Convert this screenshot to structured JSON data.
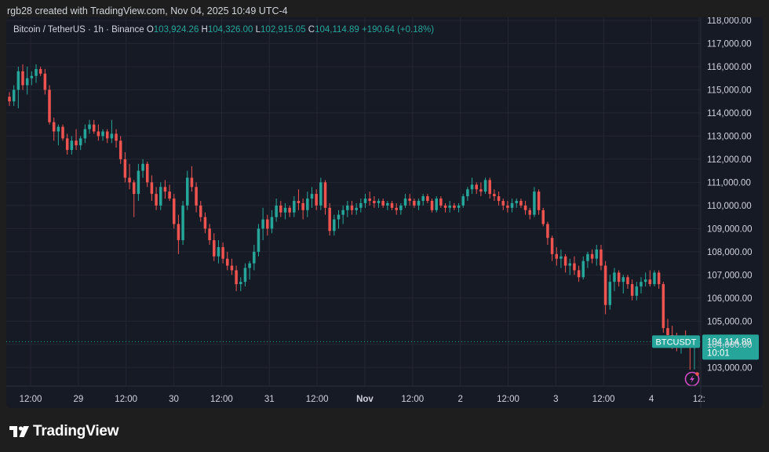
{
  "credit": "rgb28 created with TradingView.com, Nov 04, 2025 10:49 UTC-4",
  "legend": {
    "symbol": "Bitcoin / TetherUS · 1h · Binance",
    "o_label": "O",
    "o_value": "103,924.26",
    "h_label": "H",
    "h_value": "104,326.00",
    "l_label": "L",
    "l_value": "102,915.05",
    "c_label": "C",
    "c_value": "104,114.89",
    "change": "+190.64 (+0.18%)"
  },
  "price_tag": {
    "symbol": "BTCUSDT",
    "price": "104,114.89",
    "countdown": "10:01",
    "value": 104114.89
  },
  "brand": "TradingView",
  "colors": {
    "up": "#26a69a",
    "down": "#ef5350",
    "grid": "#242733",
    "text": "#d1d4dc",
    "alert": "#d34bc7"
  },
  "icons": {
    "alert": "lightning-alert-icon",
    "logo": "tradingview-logo-icon"
  },
  "chart_data": {
    "type": "candlestick",
    "ylim": [
      102500,
      118000
    ],
    "y_ticks": [
      103000,
      104000,
      105000,
      106000,
      107000,
      108000,
      109000,
      110000,
      111000,
      112000,
      113000,
      114000,
      115000,
      116000,
      117000,
      118000
    ],
    "y_tick_labels": [
      "103,000.00",
      "104,000.00",
      "105,000.00",
      "106,000.00",
      "107,000.00",
      "108,000.00",
      "109,000.00",
      "110,000.00",
      "111,000.00",
      "112,000.00",
      "113,000.00",
      "114,000.00",
      "115,000.00",
      "116,000.00",
      "117,000.00",
      "118,000.00"
    ],
    "x_ticks": [
      {
        "label": "12:00",
        "bold": false
      },
      {
        "label": "29",
        "bold": false
      },
      {
        "label": "12:00",
        "bold": false
      },
      {
        "label": "30",
        "bold": false
      },
      {
        "label": "12:00",
        "bold": false
      },
      {
        "label": "31",
        "bold": false
      },
      {
        "label": "12:00",
        "bold": false
      },
      {
        "label": "Nov",
        "bold": true
      },
      {
        "label": "12:00",
        "bold": false
      },
      {
        "label": "2",
        "bold": false
      },
      {
        "label": "12:00",
        "bold": false
      },
      {
        "label": "3",
        "bold": false
      },
      {
        "label": "12:00",
        "bold": false
      },
      {
        "label": "4",
        "bold": false
      },
      {
        "label": "12:",
        "bold": false
      }
    ],
    "candles": [
      [
        114700,
        114900,
        114300,
        114500
      ],
      [
        114500,
        115200,
        114300,
        115000
      ],
      [
        115000,
        116000,
        114200,
        115800
      ],
      [
        115800,
        116100,
        115000,
        115200
      ],
      [
        115200,
        116000,
        114800,
        115500
      ],
      [
        115500,
        115800,
        115200,
        115600
      ],
      [
        115600,
        116100,
        115300,
        115900
      ],
      [
        115900,
        116000,
        115600,
        115700
      ],
      [
        115700,
        115900,
        114800,
        115000
      ],
      [
        115000,
        115200,
        113500,
        113600
      ],
      [
        113600,
        113800,
        112800,
        113200
      ],
      [
        113200,
        113500,
        112600,
        113400
      ],
      [
        113400,
        113500,
        112800,
        112900
      ],
      [
        112900,
        113100,
        112200,
        112400
      ],
      [
        112400,
        113000,
        112200,
        112800
      ],
      [
        112800,
        113300,
        112400,
        112600
      ],
      [
        112600,
        113000,
        112400,
        112900
      ],
      [
        112900,
        113500,
        112700,
        113300
      ],
      [
        113300,
        113700,
        113100,
        113500
      ],
      [
        113500,
        113700,
        113100,
        113200
      ],
      [
        113200,
        113500,
        112800,
        113000
      ],
      [
        113000,
        113300,
        112800,
        113200
      ],
      [
        113200,
        113300,
        112700,
        112900
      ],
      [
        112900,
        113700,
        112700,
        113100
      ],
      [
        113100,
        113300,
        112500,
        112800
      ],
      [
        112800,
        113000,
        111800,
        112000
      ],
      [
        112000,
        112300,
        111000,
        111200
      ],
      [
        111200,
        111800,
        110700,
        111000
      ],
      [
        111000,
        111100,
        109500,
        110500
      ],
      [
        110500,
        111800,
        110200,
        111500
      ],
      [
        111500,
        112000,
        111200,
        111800
      ],
      [
        111800,
        111900,
        110800,
        111000
      ],
      [
        111000,
        111300,
        110200,
        110500
      ],
      [
        110500,
        110800,
        109800,
        110000
      ],
      [
        110000,
        111000,
        109800,
        110800
      ],
      [
        110800,
        111100,
        110300,
        110600
      ],
      [
        110600,
        110900,
        110200,
        110300
      ],
      [
        110300,
        110500,
        109000,
        109200
      ],
      [
        109200,
        109600,
        107900,
        108500
      ],
      [
        108500,
        110200,
        108300,
        110000
      ],
      [
        110000,
        111500,
        109800,
        111200
      ],
      [
        111200,
        111700,
        110600,
        110800
      ],
      [
        110800,
        111000,
        109700,
        110000
      ],
      [
        110000,
        110200,
        109300,
        109500
      ],
      [
        109500,
        109700,
        108800,
        109000
      ],
      [
        109000,
        109200,
        108300,
        108500
      ],
      [
        108500,
        108800,
        107600,
        107800
      ],
      [
        107800,
        108500,
        107500,
        108200
      ],
      [
        108200,
        108400,
        107500,
        107700
      ],
      [
        107700,
        108000,
        107200,
        107400
      ],
      [
        107400,
        107700,
        107000,
        107200
      ],
      [
        107200,
        107400,
        106300,
        106600
      ],
      [
        106600,
        106900,
        106300,
        106700
      ],
      [
        106700,
        107500,
        106500,
        107300
      ],
      [
        107300,
        107600,
        106800,
        107500
      ],
      [
        107500,
        108300,
        107200,
        108000
      ],
      [
        108000,
        109200,
        107800,
        109000
      ],
      [
        109000,
        109900,
        108500,
        109400
      ],
      [
        109400,
        109600,
        108700,
        109000
      ],
      [
        109000,
        109800,
        108800,
        109500
      ],
      [
        109500,
        110300,
        109300,
        110000
      ],
      [
        110000,
        110200,
        109500,
        109700
      ],
      [
        109700,
        110100,
        109400,
        109900
      ],
      [
        109900,
        110000,
        109500,
        109700
      ],
      [
        109700,
        110400,
        109500,
        110200
      ],
      [
        110200,
        110700,
        109800,
        110100
      ],
      [
        110100,
        110300,
        109400,
        109800
      ],
      [
        109800,
        110600,
        109500,
        110300
      ],
      [
        110300,
        110800,
        109900,
        110500
      ],
      [
        110500,
        110700,
        109800,
        110000
      ],
      [
        110000,
        111200,
        109800,
        111000
      ],
      [
        111000,
        111100,
        109600,
        109900
      ],
      [
        109900,
        110100,
        108700,
        108900
      ],
      [
        108900,
        109600,
        108700,
        109400
      ],
      [
        109400,
        109800,
        109000,
        109600
      ],
      [
        109600,
        110000,
        109200,
        109800
      ],
      [
        109800,
        110200,
        109500,
        110000
      ],
      [
        110000,
        110200,
        109600,
        109800
      ],
      [
        109800,
        110100,
        109600,
        109900
      ],
      [
        109900,
        110300,
        109700,
        110100
      ],
      [
        110100,
        110500,
        109900,
        110300
      ],
      [
        110300,
        110600,
        110000,
        110200
      ],
      [
        110200,
        110400,
        109900,
        110100
      ],
      [
        110100,
        110300,
        109900,
        110200
      ],
      [
        110200,
        110300,
        109900,
        110000
      ],
      [
        110000,
        110200,
        109800,
        110100
      ],
      [
        110100,
        110200,
        109800,
        109900
      ],
      [
        109900,
        110100,
        109600,
        109800
      ],
      [
        109800,
        110100,
        109600,
        110000
      ],
      [
        110000,
        110500,
        109900,
        110300
      ],
      [
        110300,
        110500,
        110000,
        110200
      ],
      [
        110200,
        110300,
        109900,
        110000
      ],
      [
        110000,
        110300,
        109800,
        110200
      ],
      [
        110200,
        110500,
        110000,
        110400
      ],
      [
        110400,
        110500,
        110100,
        110200
      ],
      [
        110200,
        110300,
        109700,
        109800
      ],
      [
        109800,
        110400,
        109700,
        110300
      ],
      [
        110300,
        110400,
        109900,
        110000
      ],
      [
        110000,
        110100,
        109700,
        109900
      ],
      [
        109900,
        110200,
        109700,
        110000
      ],
      [
        110000,
        110100,
        109800,
        109900
      ],
      [
        109900,
        110100,
        109700,
        110000
      ],
      [
        110000,
        110500,
        109900,
        110400
      ],
      [
        110400,
        110800,
        110200,
        110700
      ],
      [
        110700,
        111200,
        110500,
        110900
      ],
      [
        110900,
        111000,
        110500,
        110700
      ],
      [
        110700,
        111000,
        110400,
        110600
      ],
      [
        110600,
        111200,
        110500,
        111100
      ],
      [
        111100,
        111200,
        110300,
        110500
      ],
      [
        110500,
        110700,
        110200,
        110400
      ],
      [
        110400,
        110600,
        110000,
        110200
      ],
      [
        110200,
        110300,
        109800,
        110000
      ],
      [
        110000,
        110200,
        109700,
        109900
      ],
      [
        109900,
        110300,
        109700,
        110100
      ],
      [
        110100,
        110300,
        109900,
        110200
      ],
      [
        110200,
        110300,
        109900,
        110000
      ],
      [
        110000,
        110200,
        109600,
        109800
      ],
      [
        109800,
        109900,
        109400,
        109600
      ],
      [
        109600,
        110800,
        109500,
        110600
      ],
      [
        110600,
        110700,
        109600,
        109800
      ],
      [
        109800,
        109900,
        109100,
        109200
      ],
      [
        109200,
        109300,
        108300,
        108600
      ],
      [
        108600,
        108700,
        107600,
        107900
      ],
      [
        107900,
        108200,
        107400,
        107700
      ],
      [
        107700,
        108100,
        107300,
        107800
      ],
      [
        107800,
        107900,
        107100,
        107400
      ],
      [
        107400,
        107700,
        107000,
        107500
      ],
      [
        107500,
        107800,
        107000,
        107200
      ],
      [
        107200,
        107400,
        106700,
        106900
      ],
      [
        106900,
        107800,
        106800,
        107600
      ],
      [
        107600,
        108000,
        107300,
        107900
      ],
      [
        107900,
        108100,
        107500,
        107700
      ],
      [
        107700,
        108300,
        107400,
        108100
      ],
      [
        108100,
        108300,
        107200,
        107400
      ],
      [
        107400,
        107600,
        105300,
        105700
      ],
      [
        105700,
        107000,
        105500,
        106700
      ],
      [
        106700,
        107300,
        106300,
        107100
      ],
      [
        107100,
        107200,
        106500,
        106700
      ],
      [
        106700,
        107000,
        106200,
        106900
      ],
      [
        106900,
        107000,
        106400,
        106600
      ],
      [
        106600,
        106800,
        105900,
        106100
      ],
      [
        106100,
        106700,
        105900,
        106500
      ],
      [
        106500,
        106900,
        106200,
        106700
      ],
      [
        106700,
        107100,
        106500,
        106800
      ],
      [
        106800,
        107200,
        106500,
        106600
      ],
      [
        106600,
        107200,
        106500,
        107100
      ],
      [
        107100,
        107200,
        106400,
        106600
      ],
      [
        106600,
        106700,
        104500,
        104700
      ],
      [
        104700,
        105100,
        104000,
        104400
      ],
      [
        104400,
        104800,
        103800,
        104100
      ],
      [
        104100,
        104500,
        103700,
        103900
      ],
      [
        103900,
        104300,
        103600,
        104200
      ],
      [
        104200,
        104600,
        103900,
        104100
      ],
      [
        104100,
        104300,
        102900,
        103924.26
      ],
      [
        103924.26,
        104326,
        102915.05,
        104114.89
      ]
    ]
  }
}
